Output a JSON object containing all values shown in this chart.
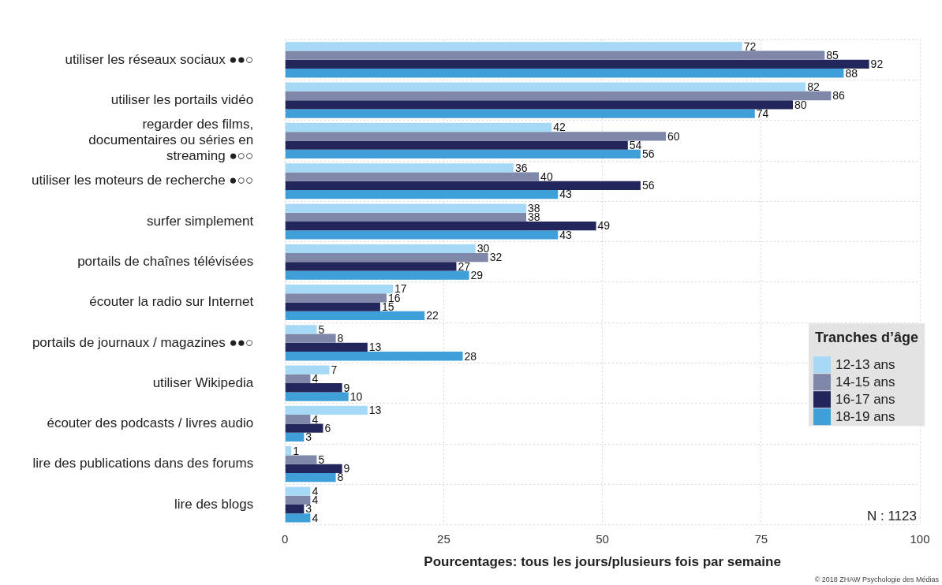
{
  "chart_data": {
    "type": "bar",
    "orientation": "horizontal",
    "xlabel": "Pourcentages: tous les jours/plusieurs fois par semaine",
    "legend_title": "Tranches d’âge",
    "legend": "bottom right",
    "grid": true,
    "data_labels": true,
    "categories": [
      "utiliser les réseaux sociaux ●●○",
      "utiliser les portails vidéo",
      "regarder des films, documentaires ou séries en streaming ●○○",
      "utiliser les moteurs de recherche ●○○",
      "surfer simplement",
      "portails de chaînes télévisées",
      "écouter la radio sur Internet",
      "portails de journaux / magazines ●●○",
      "utiliser Wikipedia",
      "écouter des podcasts / livres audio",
      "lire des publications dans des forums",
      "lire des blogs"
    ],
    "xlim": [
      0,
      100
    ],
    "xticks": [
      0,
      25,
      50,
      75,
      100
    ],
    "series": [
      {
        "name": "12-13 ans",
        "color": "#a6d9f5",
        "values": [
          72,
          82,
          42,
          36,
          38,
          30,
          17,
          5,
          7,
          13,
          1,
          4
        ]
      },
      {
        "name": "14-15 ans",
        "color": "#7f88a8",
        "values": [
          85,
          86,
          60,
          40,
          38,
          32,
          16,
          8,
          4,
          4,
          5,
          4
        ]
      },
      {
        "name": "16-17 ans",
        "color": "#22265a",
        "values": [
          92,
          80,
          54,
          56,
          49,
          27,
          15,
          13,
          9,
          6,
          9,
          3
        ]
      },
      {
        "name": "18-19 ans",
        "color": "#3f9fd8",
        "values": [
          88,
          74,
          56,
          43,
          43,
          29,
          22,
          28,
          10,
          3,
          8,
          4
        ]
      }
    ],
    "annotations": [
      "N : 1123",
      "© 2018 ZHAW Psychologie des Médias"
    ]
  }
}
